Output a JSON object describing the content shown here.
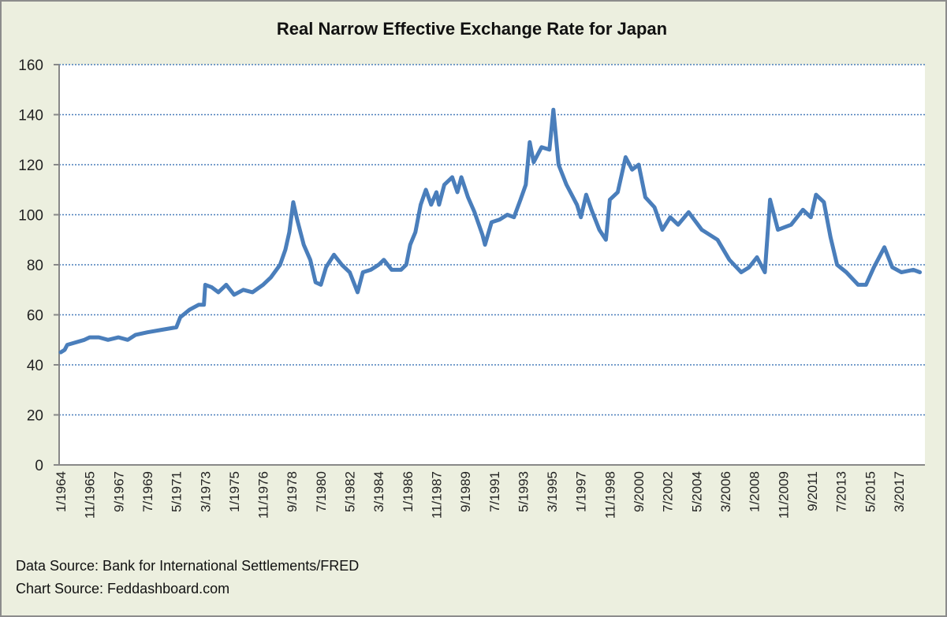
{
  "chart_data": {
    "type": "line",
    "title": "Real Narrow Effective Exchange  Rate for Japan",
    "xlabel": "",
    "ylabel": "",
    "ylim": [
      0,
      160
    ],
    "yticks": [
      0,
      20,
      40,
      60,
      80,
      100,
      120,
      140,
      160
    ],
    "grid": true,
    "grid_style": "dotted horizontal",
    "legend": "none",
    "x_tick_labels": [
      "1/1964",
      "11/1965",
      "9/1967",
      "7/1969",
      "5/1971",
      "3/1973",
      "1/1975",
      "11/1976",
      "9/1978",
      "7/1980",
      "5/1982",
      "3/1984",
      "1/1986",
      "11/1987",
      "9/1989",
      "7/1991",
      "5/1993",
      "3/1995",
      "1/1997",
      "11/1998",
      "9/2000",
      "7/2002",
      "5/2004",
      "3/2006",
      "1/2008",
      "11/2009",
      "9/2011",
      "7/2013",
      "5/2015",
      "3/2017"
    ],
    "x_range_months": [
      0,
      658
    ],
    "series": [
      {
        "name": "Real Narrow Effective Exchange Rate for Japan",
        "color": "#4a7ebb",
        "points": [
          {
            "date": "1/1964",
            "m": 0,
            "value": 45
          },
          {
            "date": "4/1964",
            "m": 3,
            "value": 46
          },
          {
            "date": "6/1964",
            "m": 5,
            "value": 48
          },
          {
            "date": "7/1965",
            "m": 18,
            "value": 50
          },
          {
            "date": "11/1965",
            "m": 22,
            "value": 51
          },
          {
            "date": "6/1966",
            "m": 29,
            "value": 51
          },
          {
            "date": "1/1967",
            "m": 36,
            "value": 50
          },
          {
            "date": "9/1967",
            "m": 44,
            "value": 51
          },
          {
            "date": "4/1968",
            "m": 51,
            "value": 50
          },
          {
            "date": "10/1968",
            "m": 57,
            "value": 52
          },
          {
            "date": "7/1969",
            "m": 66,
            "value": 53
          },
          {
            "date": "6/1970",
            "m": 77,
            "value": 54
          },
          {
            "date": "5/1971",
            "m": 88,
            "value": 55
          },
          {
            "date": "8/1971",
            "m": 91,
            "value": 59
          },
          {
            "date": "3/1972",
            "m": 98,
            "value": 62
          },
          {
            "date": "10/1972",
            "m": 105,
            "value": 64
          },
          {
            "date": "2/1973",
            "m": 109,
            "value": 64
          },
          {
            "date": "3/1973",
            "m": 110,
            "value": 72
          },
          {
            "date": "8/1973",
            "m": 115,
            "value": 71
          },
          {
            "date": "1/1974",
            "m": 120,
            "value": 69
          },
          {
            "date": "7/1974",
            "m": 126,
            "value": 72
          },
          {
            "date": "1/1975",
            "m": 132,
            "value": 68
          },
          {
            "date": "8/1975",
            "m": 139,
            "value": 70
          },
          {
            "date": "3/1976",
            "m": 146,
            "value": 69
          },
          {
            "date": "11/1976",
            "m": 154,
            "value": 72
          },
          {
            "date": "5/1977",
            "m": 160,
            "value": 75
          },
          {
            "date": "12/1977",
            "m": 167,
            "value": 80
          },
          {
            "date": "4/1978",
            "m": 171,
            "value": 86
          },
          {
            "date": "7/1978",
            "m": 174,
            "value": 93
          },
          {
            "date": "10/1978",
            "m": 177,
            "value": 105
          },
          {
            "date": "1/1979",
            "m": 180,
            "value": 98
          },
          {
            "date": "6/1979",
            "m": 185,
            "value": 88
          },
          {
            "date": "11/1979",
            "m": 190,
            "value": 82
          },
          {
            "date": "3/1980",
            "m": 194,
            "value": 73
          },
          {
            "date": "7/1980",
            "m": 198,
            "value": 72
          },
          {
            "date": "11/1980",
            "m": 202,
            "value": 79
          },
          {
            "date": "5/1981",
            "m": 208,
            "value": 84
          },
          {
            "date": "11/1981",
            "m": 214,
            "value": 80
          },
          {
            "date": "5/1982",
            "m": 220,
            "value": 77
          },
          {
            "date": "11/1982",
            "m": 226,
            "value": 69
          },
          {
            "date": "3/1983",
            "m": 230,
            "value": 77
          },
          {
            "date": "9/1983",
            "m": 236,
            "value": 78
          },
          {
            "date": "3/1984",
            "m": 242,
            "value": 80
          },
          {
            "date": "7/1984",
            "m": 246,
            "value": 82
          },
          {
            "date": "1/1985",
            "m": 252,
            "value": 78
          },
          {
            "date": "8/1985",
            "m": 259,
            "value": 78
          },
          {
            "date": "12/1985",
            "m": 263,
            "value": 80
          },
          {
            "date": "3/1986",
            "m": 266,
            "value": 88
          },
          {
            "date": "7/1986",
            "m": 270,
            "value": 93
          },
          {
            "date": "11/1986",
            "m": 274,
            "value": 104
          },
          {
            "date": "3/1987",
            "m": 278,
            "value": 110
          },
          {
            "date": "7/1987",
            "m": 282,
            "value": 104
          },
          {
            "date": "11/1987",
            "m": 286,
            "value": 109
          },
          {
            "date": "1/1988",
            "m": 288,
            "value": 104
          },
          {
            "date": "5/1988",
            "m": 292,
            "value": 112
          },
          {
            "date": "11/1988",
            "m": 298,
            "value": 115
          },
          {
            "date": "3/1989",
            "m": 302,
            "value": 109
          },
          {
            "date": "6/1989",
            "m": 305,
            "value": 115
          },
          {
            "date": "11/1989",
            "m": 310,
            "value": 107
          },
          {
            "date": "4/1990",
            "m": 315,
            "value": 101
          },
          {
            "date": "10/1990",
            "m": 321,
            "value": 92
          },
          {
            "date": "12/1990",
            "m": 323,
            "value": 88
          },
          {
            "date": "5/1991",
            "m": 328,
            "value": 97
          },
          {
            "date": "11/1991",
            "m": 334,
            "value": 98
          },
          {
            "date": "5/1992",
            "m": 340,
            "value": 100
          },
          {
            "date": "10/1992",
            "m": 345,
            "value": 99
          },
          {
            "date": "3/1993",
            "m": 350,
            "value": 106
          },
          {
            "date": "7/1993",
            "m": 354,
            "value": 112
          },
          {
            "date": "10/1993",
            "m": 357,
            "value": 129
          },
          {
            "date": "1/1994",
            "m": 360,
            "value": 121
          },
          {
            "date": "7/1994",
            "m": 366,
            "value": 127
          },
          {
            "date": "1/1995",
            "m": 372,
            "value": 126
          },
          {
            "date": "4/1995",
            "m": 375,
            "value": 142
          },
          {
            "date": "8/1995",
            "m": 379,
            "value": 120
          },
          {
            "date": "2/1996",
            "m": 385,
            "value": 112
          },
          {
            "date": "10/1996",
            "m": 393,
            "value": 104
          },
          {
            "date": "1/1997",
            "m": 396,
            "value": 99
          },
          {
            "date": "5/1997",
            "m": 400,
            "value": 108
          },
          {
            "date": "9/1997",
            "m": 404,
            "value": 102
          },
          {
            "date": "3/1998",
            "m": 410,
            "value": 94
          },
          {
            "date": "8/1998",
            "m": 415,
            "value": 90
          },
          {
            "date": "11/1998",
            "m": 418,
            "value": 106
          },
          {
            "date": "5/1999",
            "m": 424,
            "value": 109
          },
          {
            "date": "11/1999",
            "m": 430,
            "value": 123
          },
          {
            "date": "4/2000",
            "m": 435,
            "value": 118
          },
          {
            "date": "9/2000",
            "m": 440,
            "value": 120
          },
          {
            "date": "2/2001",
            "m": 445,
            "value": 107
          },
          {
            "date": "9/2001",
            "m": 452,
            "value": 103
          },
          {
            "date": "3/2002",
            "m": 458,
            "value": 94
          },
          {
            "date": "9/2002",
            "m": 464,
            "value": 99
          },
          {
            "date": "3/2003",
            "m": 470,
            "value": 96
          },
          {
            "date": "11/2003",
            "m": 478,
            "value": 101
          },
          {
            "date": "9/2004",
            "m": 488,
            "value": 94
          },
          {
            "date": "9/2005",
            "m": 500,
            "value": 90
          },
          {
            "date": "6/2006",
            "m": 509,
            "value": 82
          },
          {
            "date": "3/2007",
            "m": 518,
            "value": 77
          },
          {
            "date": "9/2007",
            "m": 524,
            "value": 79
          },
          {
            "date": "3/2008",
            "m": 530,
            "value": 83
          },
          {
            "date": "9/2008",
            "m": 536,
            "value": 77
          },
          {
            "date": "1/2009",
            "m": 540,
            "value": 106
          },
          {
            "date": "7/2009",
            "m": 546,
            "value": 94
          },
          {
            "date": "5/2010",
            "m": 556,
            "value": 96
          },
          {
            "date": "2/2011",
            "m": 565,
            "value": 102
          },
          {
            "date": "8/2011",
            "m": 571,
            "value": 99
          },
          {
            "date": "12/2011",
            "m": 575,
            "value": 108
          },
          {
            "date": "6/2012",
            "m": 581,
            "value": 105
          },
          {
            "date": "11/2012",
            "m": 586,
            "value": 91
          },
          {
            "date": "4/2013",
            "m": 591,
            "value": 80
          },
          {
            "date": "11/2013",
            "m": 598,
            "value": 77
          },
          {
            "date": "8/2014",
            "m": 607,
            "value": 72
          },
          {
            "date": "2/2015",
            "m": 613,
            "value": 72
          },
          {
            "date": "8/2015",
            "m": 619,
            "value": 79
          },
          {
            "date": "4/2016",
            "m": 627,
            "value": 87
          },
          {
            "date": "10/2016",
            "m": 633,
            "value": 79
          },
          {
            "date": "5/2017",
            "m": 640,
            "value": 77
          },
          {
            "date": "2/2018",
            "m": 649,
            "value": 78
          },
          {
            "date": "7/2018",
            "m": 654,
            "value": 77
          }
        ]
      }
    ]
  },
  "footer": {
    "data_source": "Data Source: Bank for International Settlements/FRED",
    "chart_source": "Chart Source: Feddashboard.com"
  }
}
